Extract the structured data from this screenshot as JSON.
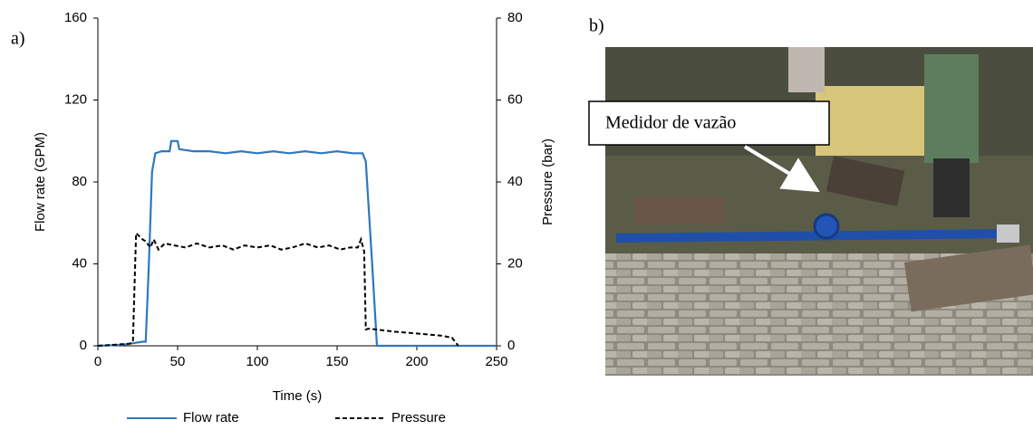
{
  "panel_labels": [
    "a)",
    "b)"
  ],
  "photo": {
    "annotation": "Medidor de vazão"
  },
  "chart_data": {
    "type": "line",
    "xlabel": "Time (s)",
    "ylabel": "Flow rate (GPM)",
    "y2label": "Pressure (bar)",
    "xlim": [
      0,
      250
    ],
    "xticks": [
      0,
      50,
      100,
      150,
      200,
      250
    ],
    "ylim": [
      0,
      160
    ],
    "yticks": [
      0,
      40,
      80,
      120,
      160
    ],
    "y2lim": [
      0,
      80
    ],
    "y2ticks": [
      0,
      20,
      40,
      60,
      80
    ],
    "legend": "bottom",
    "series": [
      {
        "name": "Flow rate",
        "color": "#2e78bd",
        "dash": "solid",
        "x": [
          0,
          15,
          20,
          28,
          30,
          32,
          34,
          36,
          40,
          45,
          46,
          50,
          51,
          60,
          70,
          80,
          90,
          100,
          110,
          120,
          130,
          140,
          150,
          160,
          166,
          168,
          172,
          175,
          200,
          250
        ],
        "values": [
          0,
          0.5,
          1,
          2,
          2,
          40,
          85,
          94,
          95,
          95,
          100,
          100,
          96,
          95,
          95,
          94,
          95,
          94,
          95,
          94,
          95,
          94,
          95,
          94,
          94,
          90,
          40,
          0,
          0,
          0
        ]
      },
      {
        "name": "Pressure",
        "color": "#000000",
        "dash": "dashed",
        "axis": "y2",
        "x": [
          0,
          20,
          22,
          23,
          24,
          28,
          30,
          33,
          35,
          38,
          42,
          48,
          55,
          62,
          70,
          78,
          85,
          92,
          100,
          108,
          115,
          122,
          130,
          138,
          145,
          152,
          158,
          163,
          165,
          167,
          168,
          170,
          185,
          200,
          215,
          222,
          226
        ],
        "values": [
          0,
          0.5,
          1,
          15,
          27.5,
          26,
          25.5,
          24,
          26,
          23.5,
          25,
          24.5,
          24,
          25,
          24,
          24.5,
          23.5,
          24.5,
          24,
          24.5,
          23.5,
          24,
          25,
          24,
          24.5,
          23.5,
          24,
          24,
          26,
          23,
          4,
          4.2,
          3.5,
          3,
          2.5,
          2,
          0
        ]
      }
    ]
  }
}
